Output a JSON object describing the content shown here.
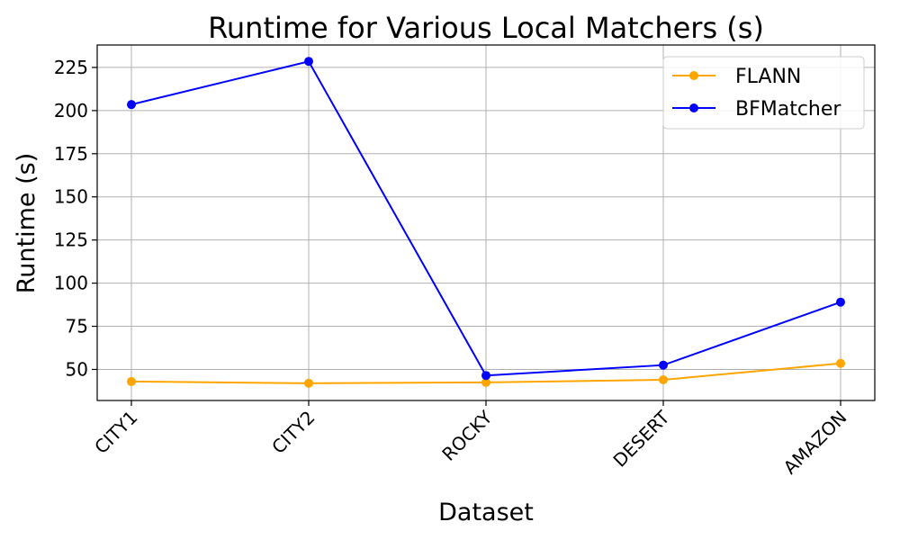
{
  "chart_data": {
    "type": "line",
    "title": "Runtime for Various Local Matchers (s)",
    "xlabel": "Dataset",
    "ylabel": "Runtime (s)",
    "categories": [
      "CITY1",
      "CITY2",
      "ROCKY",
      "DESERT",
      "AMAZON"
    ],
    "series": [
      {
        "name": "FLANN",
        "color": "#ffa500",
        "values": [
          43,
          42,
          42.5,
          44,
          53.5
        ]
      },
      {
        "name": "BFMatcher",
        "color": "#0000ff",
        "values": [
          203.5,
          228.5,
          46.5,
          52.5,
          89
        ]
      }
    ],
    "ylim": [
      32,
      238
    ],
    "yticks": [
      50,
      75,
      100,
      125,
      150,
      175,
      200,
      225
    ],
    "grid": true,
    "legend_position": "top-right",
    "marker": "circle"
  }
}
